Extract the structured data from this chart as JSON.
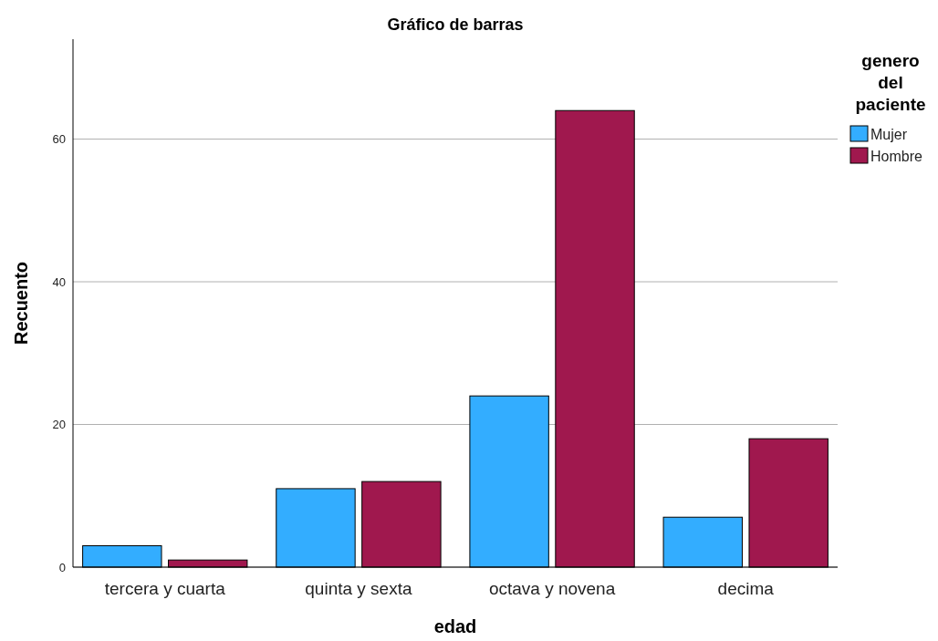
{
  "chart_data": {
    "type": "bar",
    "title": "Gráfico de barras",
    "xlabel": "edad",
    "ylabel": "Recuento",
    "legend_title": "genero del paciente",
    "categories": [
      "tercera y cuarta",
      "quinta y sexta",
      "octava y novena",
      "decima"
    ],
    "series": [
      {
        "name": "Mujer",
        "color": "#33adff",
        "values": [
          3,
          11,
          24,
          7
        ]
      },
      {
        "name": "Hombre",
        "color": "#a0184e",
        "values": [
          1,
          12,
          64,
          18
        ]
      }
    ],
    "ylim": [
      0,
      74
    ],
    "yticks": [
      0,
      20,
      40,
      60
    ],
    "grid": "y",
    "legend": "top right"
  }
}
